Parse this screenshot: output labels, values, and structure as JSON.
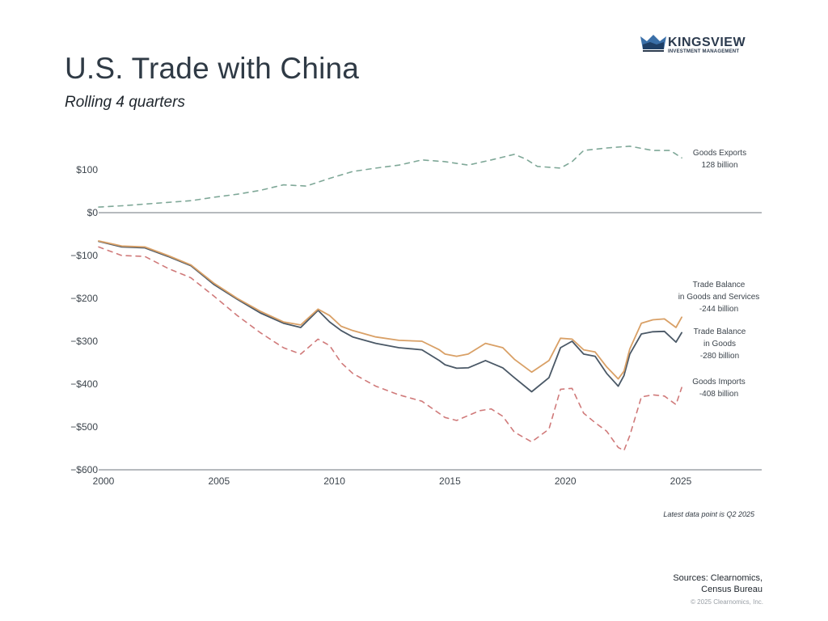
{
  "header": {
    "title": "U.S. Trade with China",
    "subtitle": "Rolling 4 quarters",
    "logo_name": "KINGSVIEW",
    "logo_sub": "INVESTMENT MANAGEMENT"
  },
  "footer": {
    "note": "Latest data point is Q2 2025",
    "sources_line1": "Sources: Clearnomics,",
    "sources_line2": "Census Bureau",
    "copyright": "© 2025 Clearnomics, Inc."
  },
  "chart_data": {
    "type": "line",
    "title": "U.S. Trade with China",
    "subtitle": "Rolling 4 quarters",
    "xlabel": "",
    "ylabel": "",
    "xlim": [
      2000,
      2029
    ],
    "ylim": [
      -600,
      150
    ],
    "grid": false,
    "y_ticks": [
      100,
      0,
      -100,
      -200,
      -300,
      -400,
      -500,
      -600
    ],
    "y_tick_labels": [
      "$100",
      "$0",
      "−$100",
      "−$200",
      "−$300",
      "−$400",
      "−$500",
      "−$600"
    ],
    "x_ticks": [
      2000,
      2005,
      2010,
      2015,
      2020,
      2025
    ],
    "x_tick_labels": [
      "2000",
      "2005",
      "2010",
      "2015",
      "2020",
      "2025"
    ],
    "colors": {
      "exports": "#7fa898",
      "balance_gs": "#d9a066",
      "balance_goods": "#4a5866",
      "imports": "#d07a7a",
      "axis": "#8a9096"
    },
    "series": [
      {
        "name": "Goods Exports",
        "style": "dashed",
        "annotation_line1": "Goods Exports",
        "annotation_line2": "128 billion",
        "x": [
          2000,
          2001,
          2002,
          2003,
          2004,
          2005,
          2006,
          2007,
          2008,
          2009,
          2010,
          2011,
          2012,
          2013,
          2014,
          2015,
          2016,
          2017,
          2018,
          2018.5,
          2019,
          2020,
          2020.5,
          2021,
          2022,
          2023,
          2024,
          2024.75,
          2025.25
        ],
        "values": [
          13,
          16,
          20,
          24,
          28,
          36,
          43,
          52,
          65,
          62,
          80,
          96,
          104,
          111,
          123,
          119,
          111,
          123,
          136,
          125,
          108,
          104,
          119,
          145,
          151,
          155,
          145,
          145,
          128
        ]
      },
      {
        "name": "Trade Balance in Goods and Services",
        "style": "solid",
        "annotation_line1": "Trade Balance",
        "annotation_line2": "in Goods and Services",
        "annotation_line3": "-244 billion",
        "x": [
          2000,
          2001,
          2002,
          2003,
          2004,
          2005,
          2006,
          2007,
          2008,
          2008.75,
          2009.5,
          2010,
          2010.5,
          2011,
          2012,
          2013,
          2014,
          2014.75,
          2015,
          2015.5,
          2016,
          2016.75,
          2017.5,
          2018,
          2018.75,
          2019.5,
          2020,
          2020.5,
          2021,
          2021.5,
          2022,
          2022.5,
          2022.75,
          2023,
          2023.5,
          2024,
          2024.5,
          2025,
          2025.25
        ],
        "values": [
          -66,
          -78,
          -80,
          -100,
          -122,
          -165,
          -200,
          -230,
          -255,
          -262,
          -225,
          -240,
          -265,
          -275,
          -290,
          -298,
          -300,
          -320,
          -330,
          -335,
          -330,
          -305,
          -315,
          -342,
          -372,
          -345,
          -293,
          -295,
          -320,
          -325,
          -360,
          -388,
          -370,
          -318,
          -258,
          -250,
          -248,
          -268,
          -244
        ]
      },
      {
        "name": "Trade Balance in Goods",
        "style": "solid",
        "annotation_line1": "Trade Balance",
        "annotation_line2": "in Goods",
        "annotation_line3": "-280 billion",
        "x": [
          2000,
          2001,
          2002,
          2003,
          2004,
          2005,
          2006,
          2007,
          2008,
          2008.75,
          2009.5,
          2010,
          2010.5,
          2011,
          2012,
          2013,
          2014,
          2014.75,
          2015,
          2015.5,
          2016,
          2016.75,
          2017.5,
          2018,
          2018.75,
          2019.5,
          2020,
          2020.5,
          2021,
          2021.5,
          2022,
          2022.5,
          2022.75,
          2023,
          2023.5,
          2024,
          2024.5,
          2025,
          2025.25
        ],
        "values": [
          -67,
          -80,
          -82,
          -102,
          -124,
          -168,
          -202,
          -234,
          -258,
          -268,
          -228,
          -255,
          -275,
          -290,
          -305,
          -315,
          -320,
          -345,
          -355,
          -363,
          -362,
          -345,
          -362,
          -385,
          -418,
          -385,
          -315,
          -300,
          -330,
          -335,
          -375,
          -405,
          -380,
          -330,
          -283,
          -278,
          -277,
          -302,
          -280
        ]
      },
      {
        "name": "Goods Imports",
        "style": "dashed",
        "annotation_line1": "Goods Imports",
        "annotation_line2": "-408 billion",
        "x": [
          2000,
          2001,
          2002,
          2003,
          2004,
          2005,
          2006,
          2007,
          2008,
          2008.75,
          2009.5,
          2010,
          2010.5,
          2011,
          2012,
          2013,
          2014,
          2015,
          2015.5,
          2016.5,
          2017,
          2017.5,
          2018,
          2018.75,
          2019.5,
          2020,
          2020.5,
          2021,
          2021.5,
          2022,
          2022.5,
          2022.75,
          2023,
          2023.5,
          2024,
          2024.5,
          2025,
          2025.25
        ],
        "values": [
          -80,
          -100,
          -102,
          -130,
          -152,
          -195,
          -240,
          -280,
          -315,
          -330,
          -295,
          -310,
          -350,
          -375,
          -405,
          -425,
          -440,
          -478,
          -485,
          -462,
          -458,
          -475,
          -512,
          -535,
          -505,
          -412,
          -410,
          -468,
          -490,
          -510,
          -548,
          -555,
          -520,
          -430,
          -425,
          -428,
          -448,
          -408
        ]
      }
    ]
  }
}
